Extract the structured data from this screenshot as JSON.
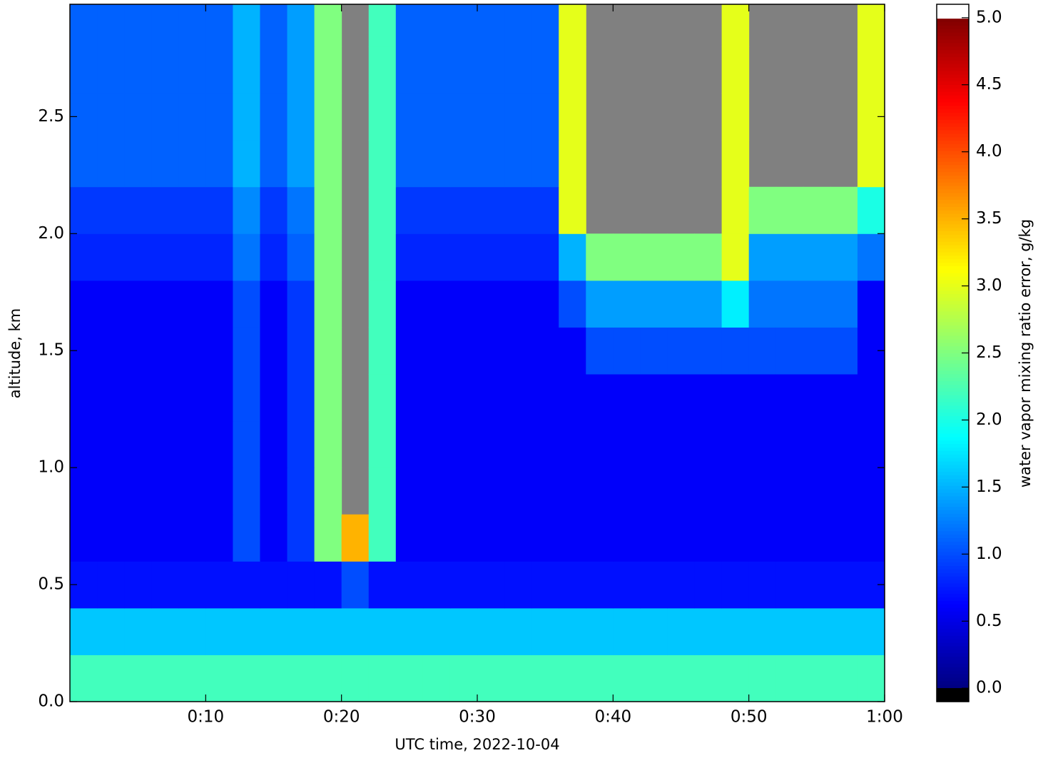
{
  "chart_data": {
    "type": "heatmap",
    "xlabel": "UTC time,  2022-10-04",
    "ylabel": "altitude, km",
    "colorbar_label": "water vapor mixing ratio error, g/kg",
    "xlim": [
      0,
      60
    ],
    "xticks": [
      {
        "value": 10,
        "label": "0:10"
      },
      {
        "value": 20,
        "label": "0:20"
      },
      {
        "value": 30,
        "label": "0:30"
      },
      {
        "value": 40,
        "label": "0:40"
      },
      {
        "value": 50,
        "label": "0:50"
      },
      {
        "value": 60,
        "label": "1:00"
      }
    ],
    "ylim": [
      0,
      2.98
    ],
    "yticks": [
      {
        "value": 0,
        "label": "0.0"
      },
      0.5,
      {
        "value": 1,
        "label": "1.0"
      },
      1.5,
      {
        "value": 2,
        "label": "2.0"
      },
      2.5
    ],
    "clim": [
      -0.1,
      5.1
    ],
    "cticks": [
      {
        "value": 0,
        "label": "0.0"
      },
      0.5,
      {
        "value": 1,
        "label": "1.0"
      },
      1.5,
      {
        "value": 2,
        "label": "2.0"
      },
      2.5,
      {
        "value": 3,
        "label": "3.0"
      },
      3.5,
      {
        "value": 4,
        "label": "4.0"
      },
      4.5,
      {
        "value": 5,
        "label": "5.0"
      }
    ],
    "colormap": "jet",
    "color_range": [
      0,
      5
    ],
    "under_color": "#000000",
    "over_color": "#ffffff",
    "nan_color": "#808080",
    "x_edges": [
      0,
      2,
      4,
      6,
      8,
      10,
      12,
      14,
      16,
      18,
      20,
      22,
      24,
      26,
      28,
      30,
      32,
      34,
      36,
      38,
      40,
      42,
      44,
      46,
      48,
      50,
      52,
      54,
      56,
      58,
      60
    ],
    "y_edges": [
      0,
      0.2,
      0.4,
      0.6,
      0.8,
      1.0,
      1.2,
      1.4,
      1.6,
      1.8,
      2.0,
      2.2,
      2.4,
      2.6,
      2.8,
      3.0
    ],
    "z": [
      [
        2.2,
        2.2,
        2.2,
        2.2,
        2.2,
        2.2,
        2.2,
        2.2,
        2.2,
        2.2,
        2.2,
        2.2,
        2.2,
        2.2,
        2.2,
        2.2,
        2.2,
        2.2,
        2.2,
        2.2,
        2.2,
        2.2,
        2.2,
        2.2,
        2.2,
        2.2,
        2.2,
        2.2,
        2.2,
        2.2
      ],
      [
        1.6,
        1.6,
        1.6,
        1.6,
        1.6,
        1.6,
        1.6,
        1.6,
        1.6,
        1.6,
        1.6,
        1.6,
        1.6,
        1.6,
        1.6,
        1.6,
        1.6,
        1.6,
        1.6,
        1.6,
        1.6,
        1.6,
        1.6,
        1.6,
        1.6,
        1.6,
        1.6,
        1.6,
        1.6,
        1.6
      ],
      [
        0.7,
        0.7,
        0.7,
        0.7,
        0.7,
        0.7,
        0.7,
        0.7,
        0.7,
        0.7,
        1.0,
        0.7,
        0.7,
        0.7,
        0.7,
        0.7,
        0.7,
        0.7,
        0.7,
        0.7,
        0.7,
        0.7,
        0.7,
        0.7,
        0.7,
        0.7,
        0.7,
        0.7,
        0.7,
        0.7
      ],
      [
        0.6,
        0.6,
        0.6,
        0.6,
        0.6,
        0.6,
        1.0,
        0.6,
        0.9,
        2.5,
        3.5,
        2.2,
        0.6,
        0.6,
        0.6,
        0.6,
        0.6,
        0.6,
        0.6,
        0.6,
        0.6,
        0.6,
        0.6,
        0.6,
        0.6,
        0.6,
        0.6,
        0.6,
        0.6,
        0.6
      ],
      [
        0.6,
        0.6,
        0.6,
        0.6,
        0.6,
        0.6,
        1.0,
        0.6,
        0.9,
        2.5,
        null,
        2.2,
        0.6,
        0.6,
        0.6,
        0.6,
        0.6,
        0.6,
        0.6,
        0.6,
        0.6,
        0.6,
        0.6,
        0.6,
        0.6,
        0.6,
        0.6,
        0.6,
        0.6,
        0.6
      ],
      [
        0.6,
        0.6,
        0.6,
        0.6,
        0.6,
        0.6,
        1.0,
        0.6,
        0.9,
        2.5,
        null,
        2.2,
        0.6,
        0.6,
        0.6,
        0.6,
        0.6,
        0.6,
        0.6,
        0.6,
        0.6,
        0.6,
        0.6,
        0.6,
        0.6,
        0.6,
        0.6,
        0.6,
        0.6,
        0.6
      ],
      [
        0.6,
        0.6,
        0.6,
        0.6,
        0.6,
        0.6,
        1.0,
        0.6,
        0.9,
        2.5,
        null,
        2.2,
        0.6,
        0.6,
        0.6,
        0.6,
        0.6,
        0.6,
        0.6,
        0.6,
        0.6,
        0.6,
        0.6,
        0.6,
        0.6,
        0.6,
        0.6,
        0.6,
        0.6,
        0.6
      ],
      [
        0.6,
        0.6,
        0.6,
        0.6,
        0.6,
        0.6,
        1.0,
        0.6,
        0.9,
        2.5,
        null,
        2.2,
        0.6,
        0.6,
        0.6,
        0.6,
        0.6,
        0.6,
        0.6,
        1.0,
        1.0,
        1.0,
        1.0,
        1.0,
        1.0,
        1.0,
        1.0,
        1.0,
        1.0,
        0.6
      ],
      [
        0.6,
        0.6,
        0.6,
        0.6,
        0.6,
        0.6,
        1.0,
        0.6,
        0.9,
        2.5,
        null,
        2.2,
        0.6,
        0.6,
        0.6,
        0.6,
        0.6,
        0.6,
        1.0,
        1.4,
        1.4,
        1.4,
        1.4,
        1.4,
        1.8,
        1.2,
        1.2,
        1.2,
        1.2,
        0.6
      ],
      [
        0.8,
        0.8,
        0.8,
        0.8,
        0.8,
        0.8,
        1.2,
        0.8,
        1.1,
        2.5,
        null,
        2.2,
        0.8,
        0.8,
        0.8,
        0.8,
        0.8,
        0.8,
        1.5,
        2.5,
        2.5,
        2.5,
        2.5,
        2.5,
        3.0,
        1.4,
        1.4,
        1.4,
        1.4,
        1.2
      ],
      [
        0.9,
        0.9,
        0.9,
        0.9,
        0.9,
        0.9,
        1.3,
        0.9,
        1.2,
        2.5,
        null,
        2.2,
        0.9,
        0.9,
        0.9,
        0.9,
        0.9,
        0.9,
        3.0,
        null,
        null,
        null,
        null,
        null,
        3.0,
        2.5,
        2.5,
        2.5,
        2.5,
        2.0
      ],
      [
        1.1,
        1.1,
        1.1,
        1.1,
        1.1,
        1.1,
        1.5,
        1.1,
        1.4,
        2.5,
        null,
        2.2,
        1.1,
        1.1,
        1.1,
        1.1,
        1.1,
        1.1,
        3.0,
        null,
        null,
        null,
        null,
        null,
        3.0,
        null,
        null,
        null,
        null,
        3.0
      ],
      [
        1.1,
        1.1,
        1.1,
        1.1,
        1.1,
        1.1,
        1.5,
        1.1,
        1.4,
        2.5,
        null,
        2.2,
        1.1,
        1.1,
        1.1,
        1.1,
        1.1,
        1.1,
        3.0,
        null,
        null,
        null,
        null,
        null,
        3.0,
        null,
        null,
        null,
        null,
        3.0
      ],
      [
        1.1,
        1.1,
        1.1,
        1.1,
        1.1,
        1.1,
        1.5,
        1.1,
        1.4,
        2.5,
        null,
        2.2,
        1.1,
        1.1,
        1.1,
        1.1,
        1.1,
        1.1,
        3.0,
        null,
        null,
        null,
        null,
        null,
        3.0,
        null,
        null,
        null,
        null,
        3.0
      ],
      [
        1.1,
        1.1,
        1.1,
        1.1,
        1.1,
        1.1,
        1.5,
        1.1,
        1.4,
        2.5,
        null,
        2.2,
        1.1,
        1.1,
        1.1,
        1.1,
        1.1,
        1.1,
        3.0,
        null,
        null,
        null,
        null,
        null,
        3.0,
        null,
        null,
        null,
        null,
        3.0
      ]
    ]
  }
}
